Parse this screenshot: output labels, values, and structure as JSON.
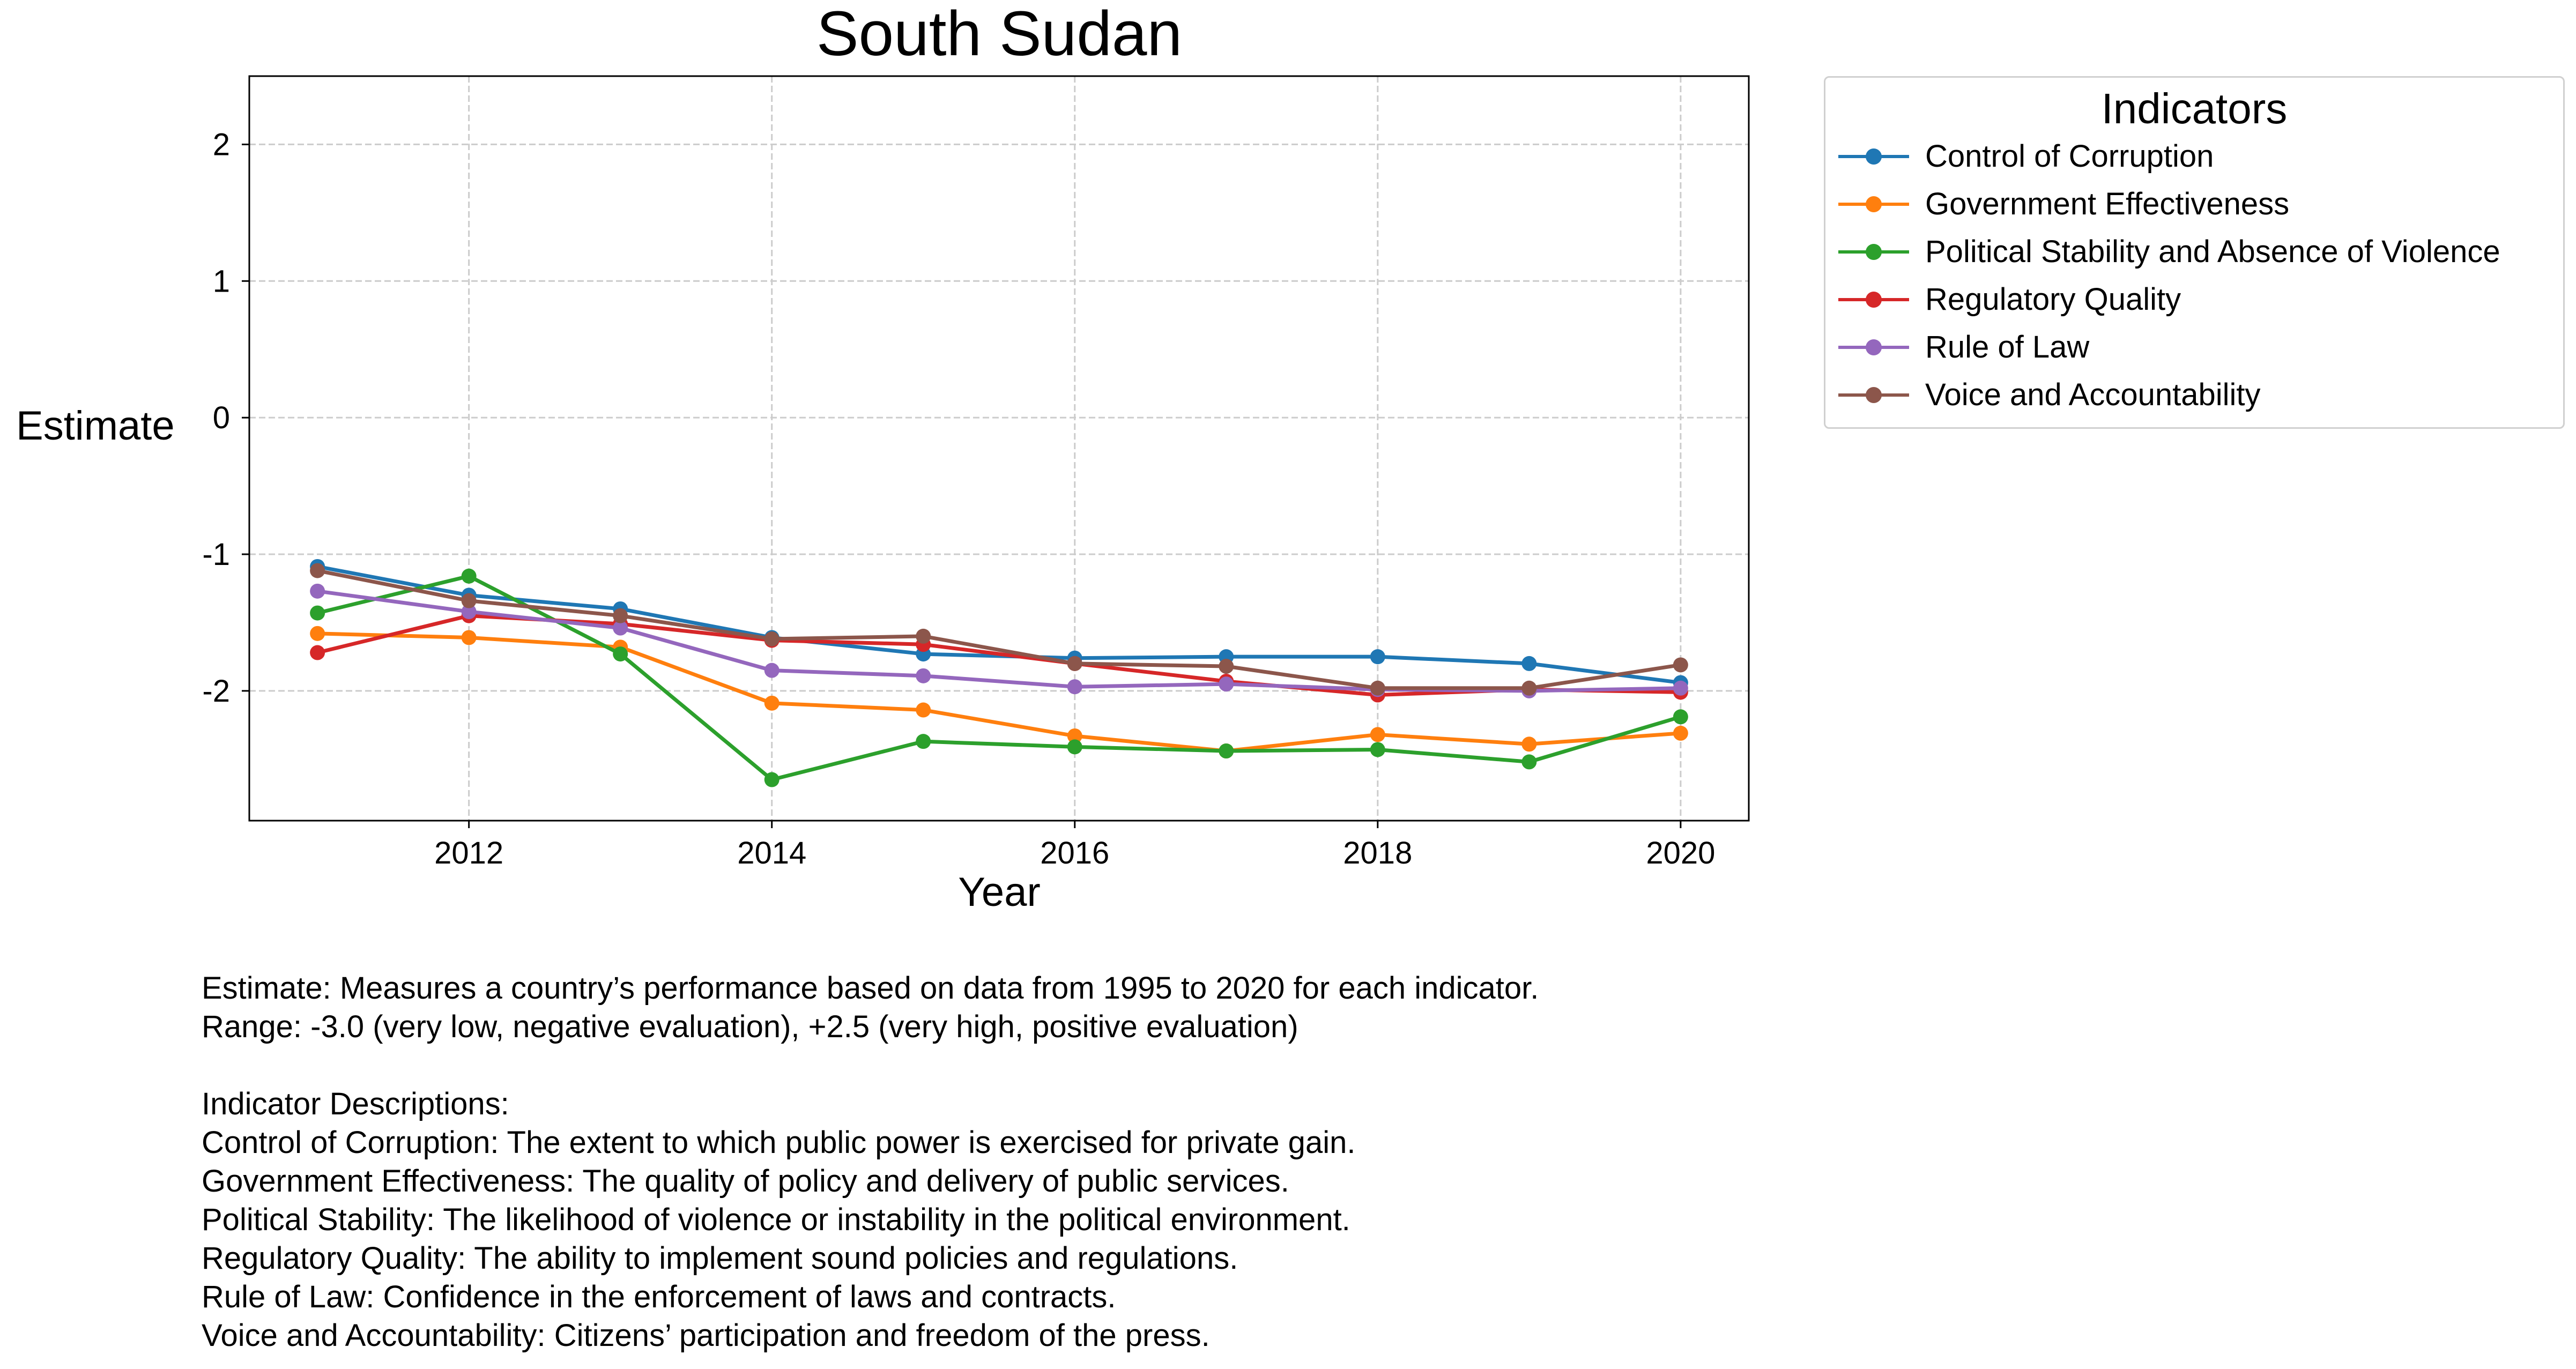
{
  "chart_data": {
    "type": "line",
    "title": "South Sudan",
    "xlabel": "Year",
    "ylabel": "Estimate",
    "x": [
      2011,
      2012,
      2013,
      2014,
      2015,
      2016,
      2017,
      2018,
      2019,
      2020
    ],
    "x_ticks": [
      2012,
      2014,
      2016,
      2018,
      2020
    ],
    "y_ticks": [
      -2,
      -1,
      0,
      1,
      2
    ],
    "xlim": [
      2010.55,
      2020.45
    ],
    "ylim": [
      -2.95,
      2.5
    ],
    "grid": true,
    "legend_title": "Indicators",
    "legend_position": "outside-top-right",
    "series": [
      {
        "name": "Control of Corruption",
        "color": "#1f77b4",
        "values": [
          -1.09,
          -1.3,
          -1.4,
          -1.61,
          -1.73,
          -1.76,
          -1.75,
          -1.75,
          -1.8,
          -1.94
        ]
      },
      {
        "name": "Government Effectiveness",
        "color": "#ff7f0e",
        "values": [
          -1.58,
          -1.61,
          -1.68,
          -2.09,
          -2.14,
          -2.33,
          -2.44,
          -2.32,
          -2.39,
          -2.31
        ]
      },
      {
        "name": "Political Stability and Absence of Violence",
        "color": "#2ca02c",
        "values": [
          -1.43,
          -1.16,
          -1.73,
          -2.65,
          -2.37,
          -2.41,
          -2.44,
          -2.43,
          -2.52,
          -2.19
        ]
      },
      {
        "name": "Regulatory Quality",
        "color": "#d62728",
        "values": [
          -1.72,
          -1.45,
          -1.51,
          -1.63,
          -1.66,
          -1.8,
          -1.93,
          -2.03,
          -1.99,
          -2.01
        ]
      },
      {
        "name": "Rule of Law",
        "color": "#9467bd",
        "values": [
          -1.27,
          -1.42,
          -1.54,
          -1.85,
          -1.89,
          -1.97,
          -1.95,
          -1.99,
          -2.0,
          -1.98
        ]
      },
      {
        "name": "Voice and Accountability",
        "color": "#8c564b",
        "values": [
          -1.12,
          -1.34,
          -1.45,
          -1.62,
          -1.6,
          -1.8,
          -1.82,
          -1.98,
          -1.98,
          -1.81
        ]
      }
    ]
  },
  "notes": {
    "line1": "Estimate: Measures a country’s performance based on data from 1995 to 2020 for each indicator.",
    "line2": "Range: -3.0 (very low, negative evaluation), +2.5 (very high, positive evaluation)",
    "line3": "Indicator Descriptions:",
    "line4": "Control of Corruption: The extent to which public power is exercised for private gain.",
    "line5": "Government Effectiveness: The quality of policy and delivery of public services.",
    "line6": "Political Stability: The likelihood of violence or instability in the political environment.",
    "line7": "Regulatory Quality: The ability to implement sound policies and regulations.",
    "line8": "Rule of Law: Confidence in the enforcement of laws and contracts.",
    "line9": "Voice and Accountability: Citizens’ participation and freedom of the press."
  }
}
